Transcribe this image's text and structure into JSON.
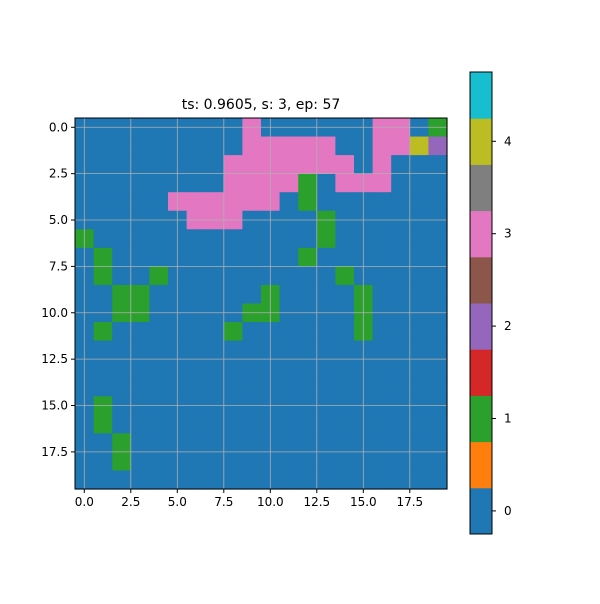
{
  "chart_data": {
    "type": "heatmap",
    "title": "ts: 0.9605, s: 3, ep: 57",
    "xlabel": "",
    "ylabel": "",
    "rows": 20,
    "cols": 20,
    "xlim": [
      -0.5,
      19.5
    ],
    "ylim": [
      19.5,
      -0.5
    ],
    "x_ticks": [
      0,
      2.5,
      5,
      7.5,
      10,
      12.5,
      15,
      17.5
    ],
    "x_tick_labels": [
      "0.0",
      "2.5",
      "5.0",
      "7.5",
      "10.0",
      "12.5",
      "15.0",
      "17.5"
    ],
    "y_ticks": [
      0,
      2.5,
      5,
      7.5,
      10,
      12.5,
      15,
      17.5
    ],
    "y_tick_labels": [
      "0.0",
      "2.5",
      "5.0",
      "7.5",
      "10.0",
      "12.5",
      "15.0",
      "17.5"
    ],
    "grid": true,
    "color_range": [
      -0.25,
      4.75
    ],
    "colorbar_ticks": [
      0,
      1,
      2,
      3,
      4
    ],
    "colorbar_tick_labels": [
      "0",
      "1",
      "2",
      "3",
      "4"
    ],
    "colors": [
      "#1f77b4",
      "#ff7f0e",
      "#2ca02c",
      "#d62728",
      "#9467bd",
      "#8c564b",
      "#e377c2",
      "#7f7f7f",
      "#bcbd22",
      "#17becf"
    ],
    "values": [
      [
        0,
        0,
        0,
        0,
        0,
        0,
        0,
        0,
        0,
        3,
        0,
        0,
        0,
        0,
        0,
        0,
        3,
        3,
        0,
        1
      ],
      [
        0,
        0,
        0,
        0,
        0,
        0,
        0,
        0,
        0,
        3,
        3,
        3,
        3,
        3,
        0,
        0,
        3,
        3,
        4,
        2
      ],
      [
        0,
        0,
        0,
        0,
        0,
        0,
        0,
        0,
        3,
        3,
        3,
        3,
        3,
        3,
        3,
        0,
        3,
        0,
        0,
        0
      ],
      [
        0,
        0,
        0,
        0,
        0,
        0,
        0,
        0,
        3,
        3,
        3,
        3,
        1,
        0,
        3,
        3,
        3,
        0,
        0,
        0
      ],
      [
        0,
        0,
        0,
        0,
        0,
        3,
        3,
        3,
        3,
        3,
        3,
        0,
        1,
        0,
        0,
        0,
        0,
        0,
        0,
        0
      ],
      [
        0,
        0,
        0,
        0,
        0,
        0,
        3,
        3,
        3,
        0,
        0,
        0,
        0,
        1,
        0,
        0,
        0,
        0,
        0,
        0
      ],
      [
        1,
        0,
        0,
        0,
        0,
        0,
        0,
        0,
        0,
        0,
        0,
        0,
        0,
        1,
        0,
        0,
        0,
        0,
        0,
        0
      ],
      [
        0,
        1,
        0,
        0,
        0,
        0,
        0,
        0,
        0,
        0,
        0,
        0,
        1,
        0,
        0,
        0,
        0,
        0,
        0,
        0
      ],
      [
        0,
        1,
        0,
        0,
        1,
        0,
        0,
        0,
        0,
        0,
        0,
        0,
        0,
        0,
        1,
        0,
        0,
        0,
        0,
        0
      ],
      [
        0,
        0,
        1,
        1,
        0,
        0,
        0,
        0,
        0,
        0,
        1,
        0,
        0,
        0,
        0,
        1,
        0,
        0,
        0,
        0
      ],
      [
        0,
        0,
        1,
        1,
        0,
        0,
        0,
        0,
        0,
        1,
        1,
        0,
        0,
        0,
        0,
        1,
        0,
        0,
        0,
        0
      ],
      [
        0,
        1,
        0,
        0,
        0,
        0,
        0,
        0,
        1,
        0,
        0,
        0,
        0,
        0,
        0,
        1,
        0,
        0,
        0,
        0
      ],
      [
        0,
        0,
        0,
        0,
        0,
        0,
        0,
        0,
        0,
        0,
        0,
        0,
        0,
        0,
        0,
        0,
        0,
        0,
        0,
        0
      ],
      [
        0,
        0,
        0,
        0,
        0,
        0,
        0,
        0,
        0,
        0,
        0,
        0,
        0,
        0,
        0,
        0,
        0,
        0,
        0,
        0
      ],
      [
        0,
        0,
        0,
        0,
        0,
        0,
        0,
        0,
        0,
        0,
        0,
        0,
        0,
        0,
        0,
        0,
        0,
        0,
        0,
        0
      ],
      [
        0,
        1,
        0,
        0,
        0,
        0,
        0,
        0,
        0,
        0,
        0,
        0,
        0,
        0,
        0,
        0,
        0,
        0,
        0,
        0
      ],
      [
        0,
        1,
        0,
        0,
        0,
        0,
        0,
        0,
        0,
        0,
        0,
        0,
        0,
        0,
        0,
        0,
        0,
        0,
        0,
        0
      ],
      [
        0,
        0,
        1,
        0,
        0,
        0,
        0,
        0,
        0,
        0,
        0,
        0,
        0,
        0,
        0,
        0,
        0,
        0,
        0,
        0
      ],
      [
        0,
        0,
        1,
        0,
        0,
        0,
        0,
        0,
        0,
        0,
        0,
        0,
        0,
        0,
        0,
        0,
        0,
        0,
        0,
        0
      ],
      [
        0,
        0,
        0,
        0,
        0,
        0,
        0,
        0,
        0,
        0,
        0,
        0,
        0,
        0,
        0,
        0,
        0,
        0,
        0,
        0
      ]
    ]
  }
}
